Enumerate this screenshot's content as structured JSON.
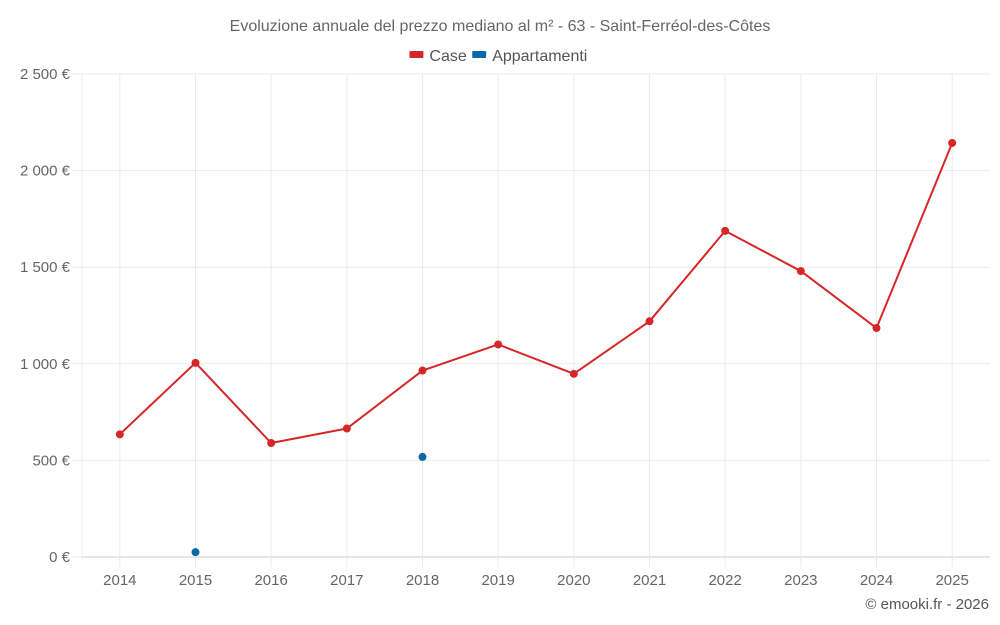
{
  "chart_data": {
    "type": "line",
    "title": "Evoluzione annuale del prezzo mediano al m² - 63 - Saint-Ferréol-des-Côtes",
    "xlabel": "",
    "ylabel": "",
    "categories": [
      "2014",
      "2015",
      "2016",
      "2017",
      "2018",
      "2019",
      "2020",
      "2021",
      "2022",
      "2023",
      "2024",
      "2025"
    ],
    "ylim": [
      0,
      2500
    ],
    "yticks": [
      0,
      500,
      1000,
      1500,
      2000,
      2500
    ],
    "ytick_labels": [
      "0 €",
      "500 €",
      "1 000 €",
      "1 500 €",
      "2 000 €",
      "2 500 €"
    ],
    "grid": true,
    "legend_position": "top-center",
    "series": [
      {
        "name": "Case",
        "color": "#d62728",
        "values": [
          635,
          1005,
          590,
          665,
          965,
          1100,
          948,
          1220,
          1688,
          1480,
          1185,
          2143
        ]
      },
      {
        "name": "Appartamenti",
        "color": "#0868a8",
        "values": [
          null,
          25,
          null,
          null,
          518,
          null,
          null,
          null,
          null,
          null,
          null,
          null
        ]
      }
    ],
    "credit": "© emooki.fr - 2026"
  }
}
